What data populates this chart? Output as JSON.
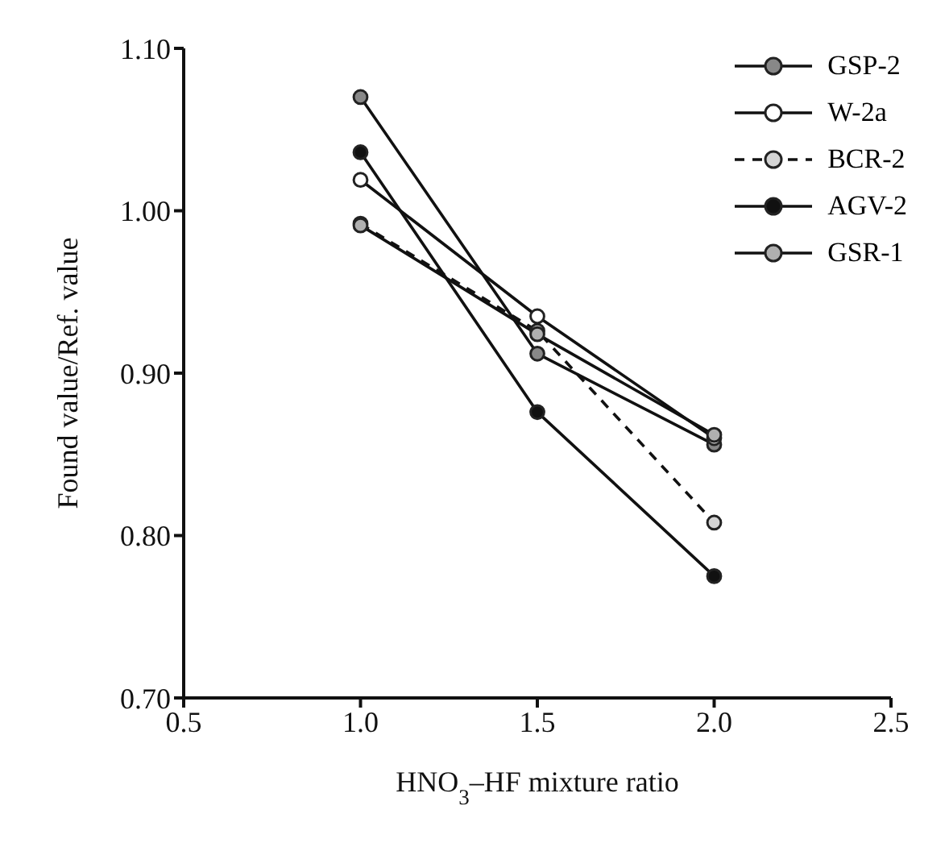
{
  "chart_data": {
    "type": "line",
    "xlabel": "HNO$_{3}$–HF mixture ratio",
    "ylabel": "Found value/Ref. value",
    "x": [
      1.0,
      1.5,
      2.0
    ],
    "series": [
      {
        "name": "GSP-2",
        "color": "#888888",
        "values": [
          1.07,
          0.912,
          0.856
        ]
      },
      {
        "name": "W-2a",
        "color": "#ffffff",
        "values": [
          1.019,
          0.935,
          0.86
        ]
      },
      {
        "name": "BCR-2",
        "color": "#d4d4d4",
        "values": [
          0.992,
          0.926,
          0.808
        ],
        "line_style": "dashed"
      },
      {
        "name": "AGV-2",
        "color": "#111111",
        "values": [
          1.036,
          0.876,
          0.775
        ]
      },
      {
        "name": "GSR-1",
        "color": "#b0b0b0",
        "values": [
          0.991,
          0.924,
          0.862
        ]
      }
    ],
    "xlim": [
      0.5,
      2.5
    ],
    "xticks": [
      0.5,
      {
        "value": 1.0,
        "label": "1.0"
      },
      1.5,
      {
        "value": 2.0,
        "label": "2.0"
      },
      2.5
    ],
    "ylim": [
      0.7,
      1.1
    ],
    "yticks": [
      {
        "value": 0.7,
        "label": "0.70"
      },
      {
        "value": 0.8,
        "label": "0.80"
      },
      {
        "value": 0.9,
        "label": "0.90"
      },
      {
        "value": 1.0,
        "label": "1.00"
      },
      {
        "value": 1.1,
        "label": "1.10"
      }
    ],
    "grid": false,
    "legend": "top right",
    "marker": "circle",
    "line_style": "solid"
  }
}
